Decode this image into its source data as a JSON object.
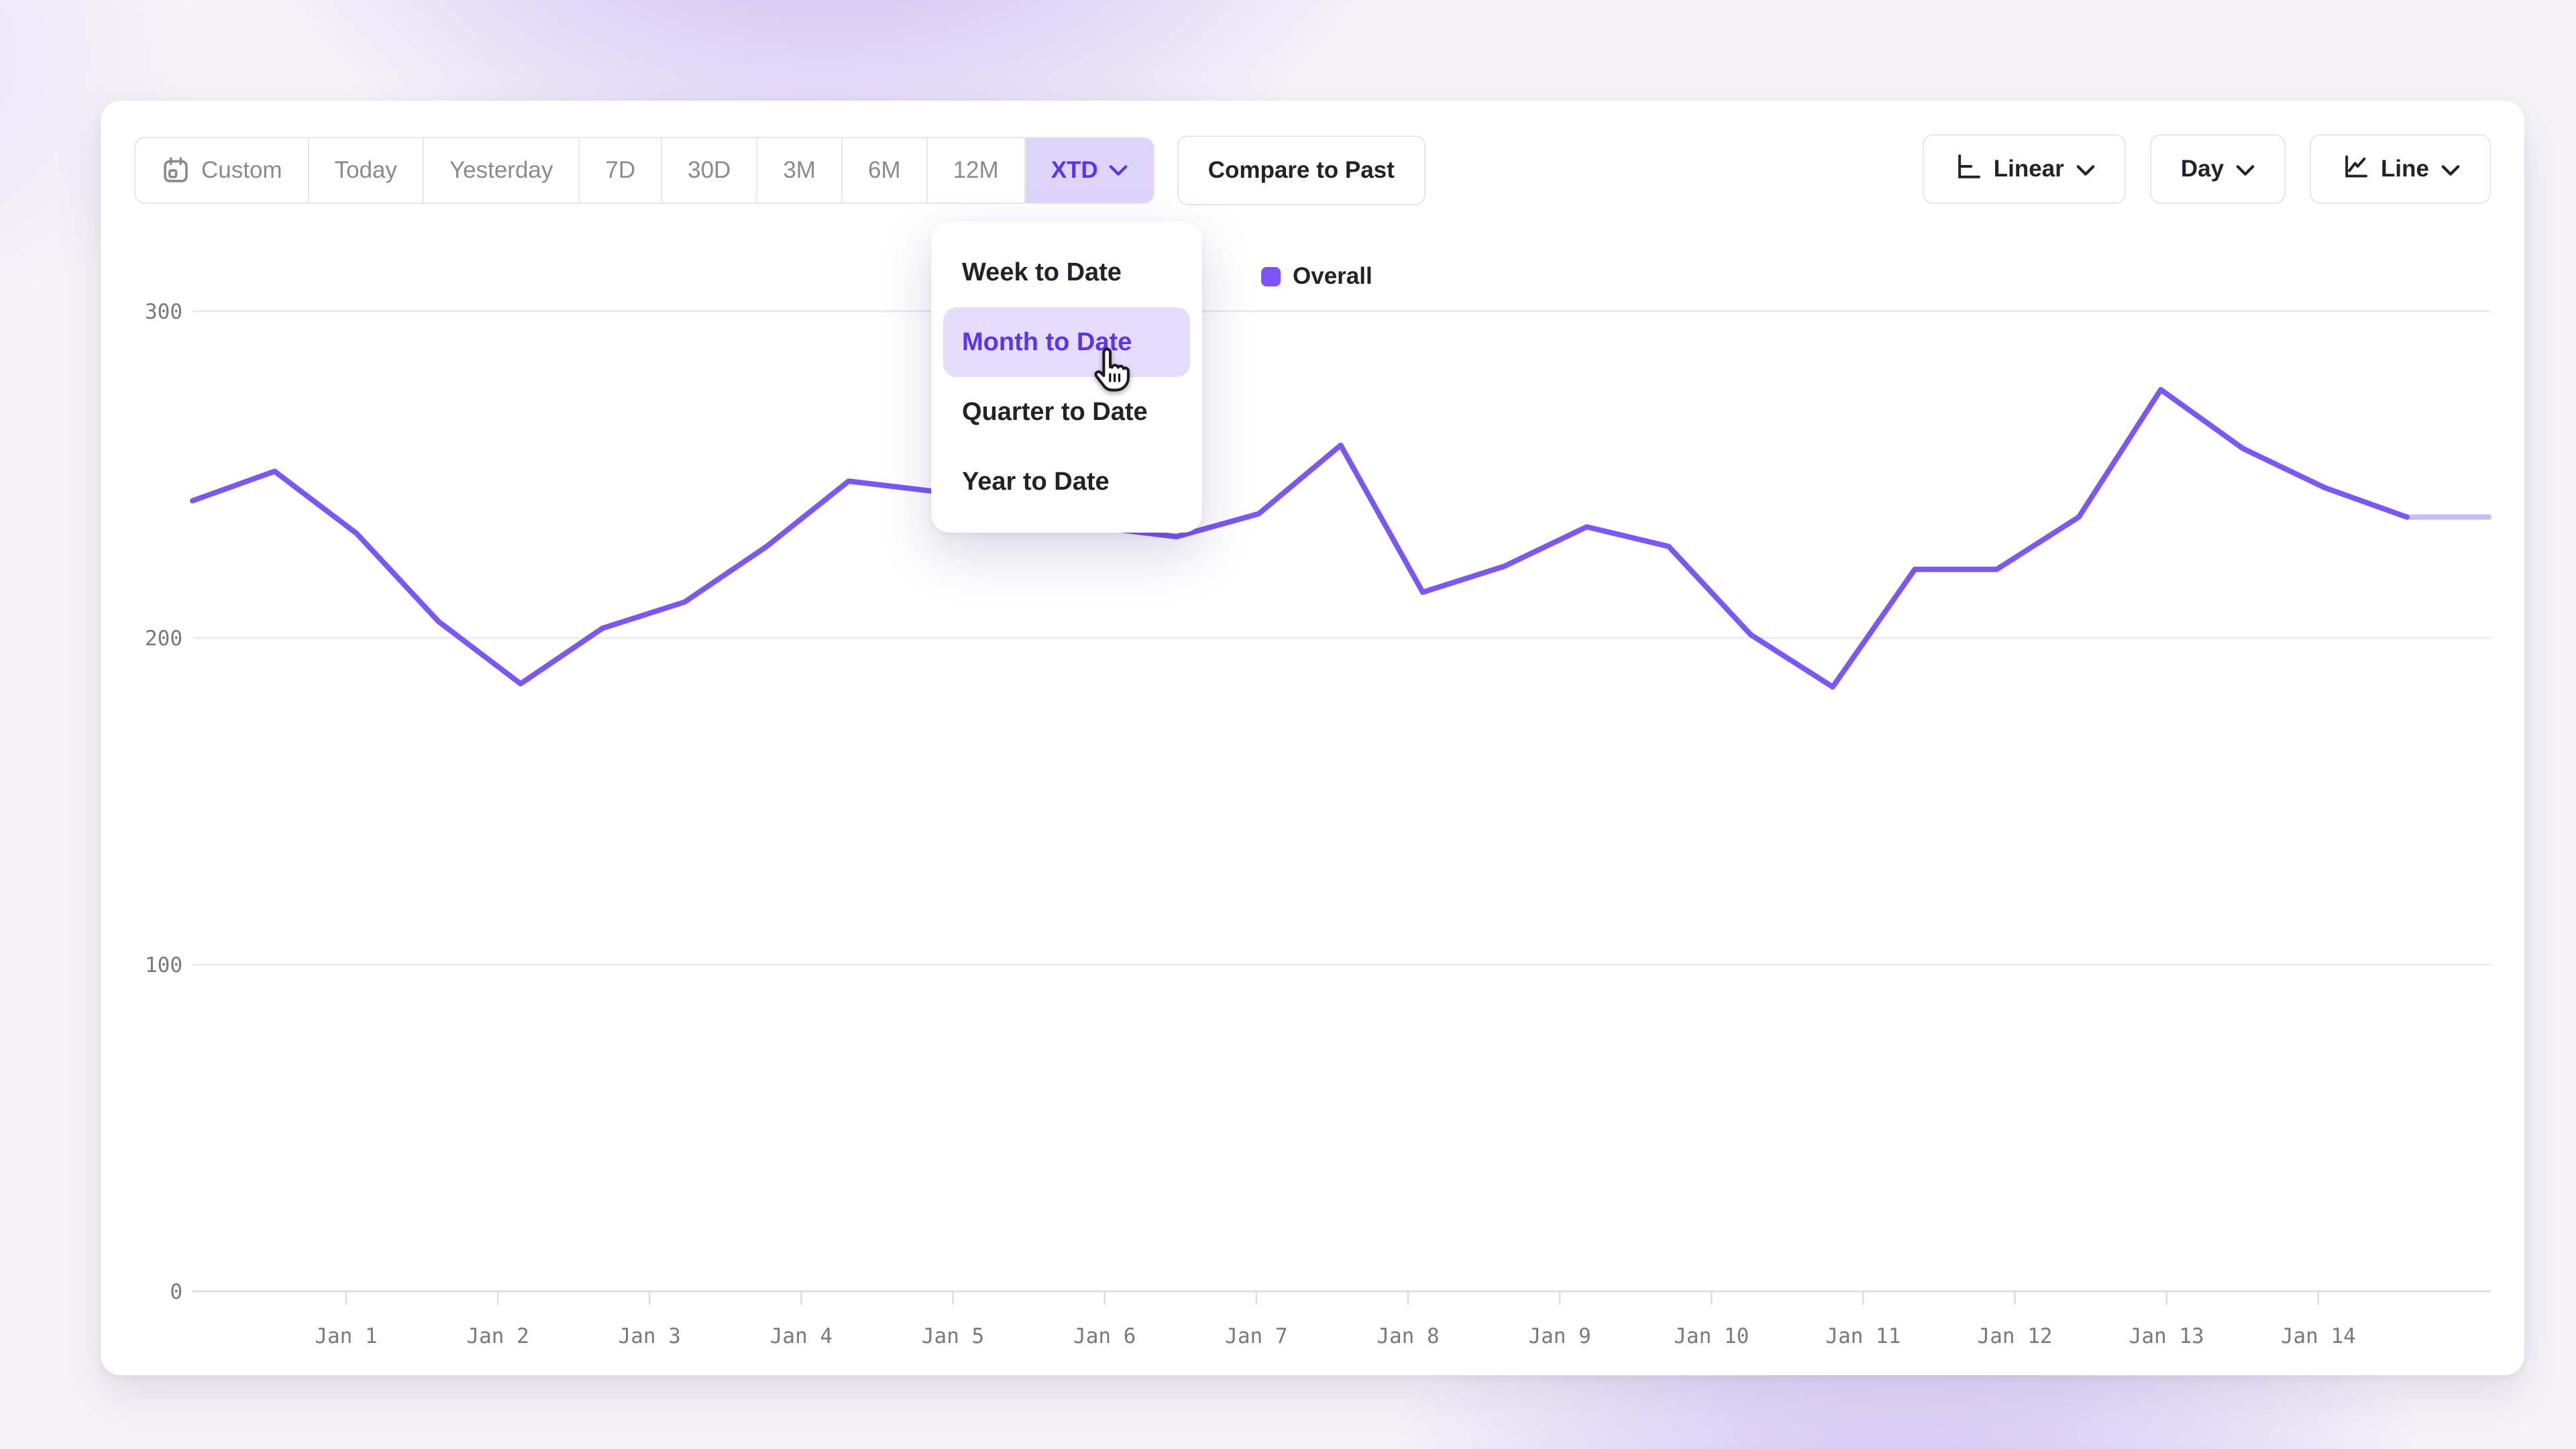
{
  "toolbar": {
    "date_ranges": [
      "Custom",
      "Today",
      "Yesterday",
      "7D",
      "30D",
      "3M",
      "6M",
      "12M",
      "XTD"
    ],
    "selected_range": "XTD",
    "compare_label": "Compare to Past",
    "scale_label": "Linear",
    "granularity_label": "Day",
    "chart_type_label": "Line"
  },
  "range_dropdown": {
    "items": [
      "Week to Date",
      "Month to Date",
      "Quarter to Date",
      "Year to Date"
    ],
    "highlighted": "Month to Date"
  },
  "legend": {
    "label": "Overall",
    "color": "#7d55f7"
  },
  "chart_data": {
    "type": "line",
    "series": [
      {
        "name": "Overall",
        "color": "#7b57f7",
        "values": [
          242,
          251,
          232,
          205,
          186,
          203,
          211,
          228,
          248,
          245,
          240,
          234,
          231,
          238,
          259,
          214,
          222,
          234,
          228,
          201,
          185,
          221,
          221,
          237,
          276,
          258,
          246,
          237,
          237
        ]
      }
    ],
    "x_tick_labels": [
      "Jan 1",
      "Jan 2",
      "Jan 3",
      "Jan 4",
      "Jan 5",
      "Jan 6",
      "Jan 7",
      "Jan 8",
      "Jan 9",
      "Jan 10",
      "Jan 11",
      "Jan 12",
      "Jan 13",
      "Jan 14"
    ],
    "y_ticks": [
      0,
      100,
      200,
      300
    ],
    "ylim": [
      0,
      300
    ],
    "grid": "horizontal-only",
    "legend_position": "top-center",
    "points_per_tick_interval": 2,
    "last_segment_opacity": 0.4
  },
  "colors": {
    "accent_purple": "#5c33f1",
    "accent_purple_bg": "#ded4fb",
    "highlight_pill_bg": "#e6ddfc",
    "line": "#7b57f7",
    "text_dark": "#232129",
    "text_gray": "#8b8a94",
    "tick_text": "#7a7881",
    "gridline": "#eae8ef",
    "axis_line": "#dddbe3",
    "border": "#e8e6ed",
    "card_bg": "#ffffff"
  }
}
